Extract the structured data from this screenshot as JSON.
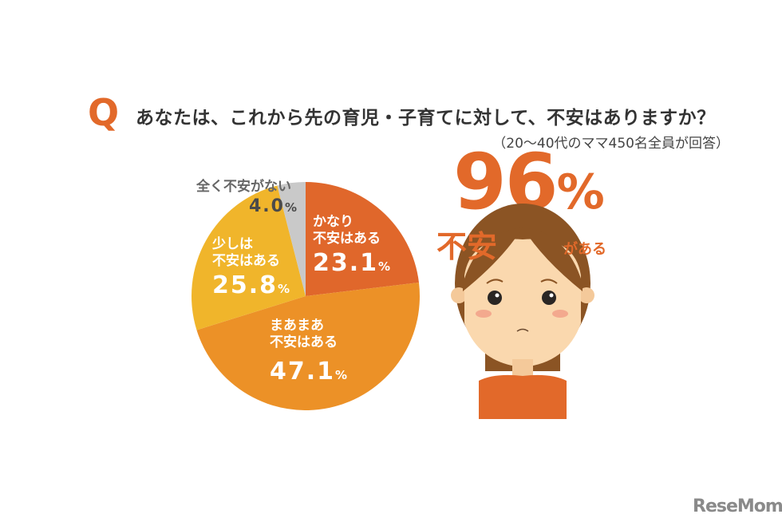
{
  "header": {
    "q_mark": "Q",
    "question": "あなたは、これから先の育児・子育てに対して、不安はありますか？",
    "note": "（20〜40代のママ450名全員が回答）"
  },
  "chart_data": {
    "type": "pie",
    "start": "top",
    "direction": "clockwise",
    "slices": [
      {
        "label": "かなり不安はある",
        "line1": "かなり",
        "line2": "不安はある",
        "value": 23.1,
        "display": "23.1",
        "color": "#e0672b"
      },
      {
        "label": "まあまあ不安はある",
        "line1": "まあまあ",
        "line2": "不安はある",
        "value": 47.1,
        "display": "47.1",
        "color": "#ec9127"
      },
      {
        "label": "少しは不安はある",
        "line1": "少しは",
        "line2": "不安はある",
        "value": 25.8,
        "display": "25.8",
        "color": "#f0b52b"
      },
      {
        "label": "全く不安がない",
        "line1": "全く不安がない",
        "line2": "",
        "value": 4.0,
        "display": "4.0",
        "color": "#c9c9c9"
      }
    ],
    "unit": "%"
  },
  "callout": {
    "value": "96",
    "unit": "%",
    "prefix": "不安",
    "suffix": "がある"
  },
  "logo": "ReseMom"
}
